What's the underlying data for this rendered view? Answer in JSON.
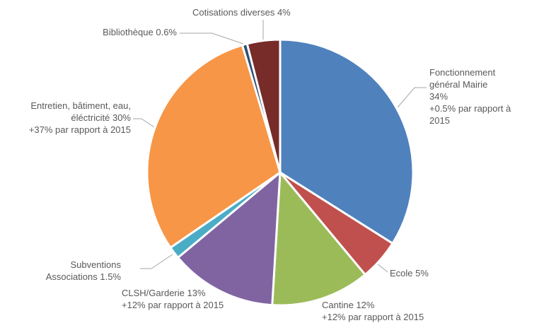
{
  "chart_data": {
    "type": "pie",
    "categories": [
      "Fonctionnement général Mairie",
      "Ecole",
      "Cantine",
      "CLSH/Garderie",
      "Subventions Associations",
      "Entretien, bâtiment, eau, éléctricité",
      "Bibliothèque",
      "Cotisations diverses"
    ],
    "values": [
      34,
      5,
      12,
      13,
      1.5,
      30,
      0.6,
      4
    ],
    "value_labels": [
      "34%",
      "5%",
      "12%",
      "13%",
      "1.5%",
      "30%",
      "0.6%",
      "4%"
    ],
    "notes": [
      "+0.5% par rapport à 2015",
      null,
      "+12% par rapport à 2015",
      "+12% par rapport à 2015",
      null,
      "+37% par rapport à 2015",
      null,
      null
    ],
    "colors": [
      "#4f81bd",
      "#c0504d",
      "#9bbb59",
      "#8064a2",
      "#4bacc6",
      "#f79646",
      "#2c4d75",
      "#772c2a"
    ]
  }
}
